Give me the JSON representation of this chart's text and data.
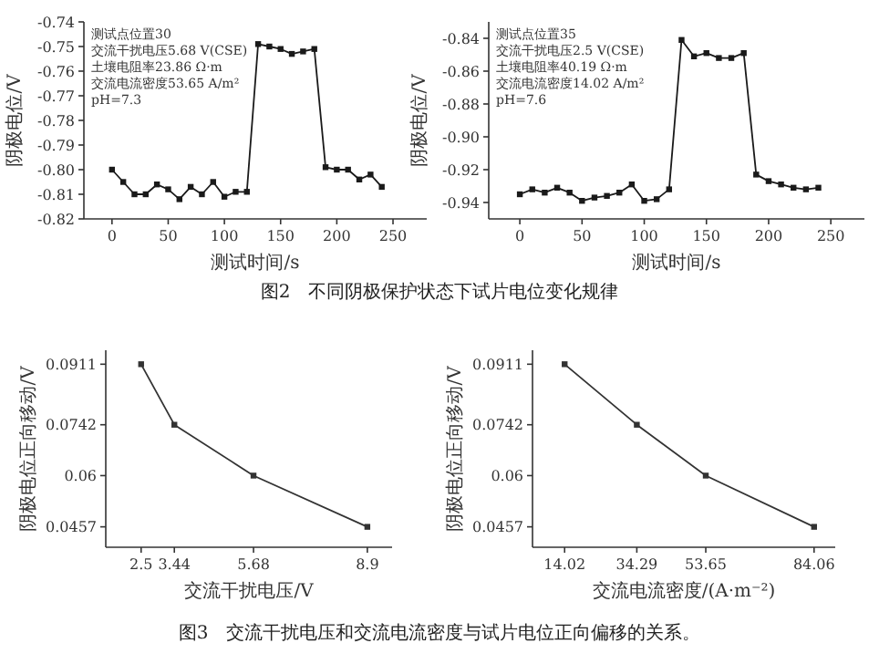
{
  "chart_data": [
    {
      "type": "line",
      "title": "图2　不同阴极保护状态下试片电位变化规律",
      "xlabel": "测试时间/s",
      "ylabel": "阴极电位/V",
      "marker": "square",
      "color": "#1a1a1a",
      "annotations": [
        "测试点位置30",
        "交流干扰电压5.68 V(CSE)",
        "土壤电阻率23.86 Ω·m",
        "交流电流密度53.65 A/m²",
        "pH=7.3"
      ],
      "x": [
        0,
        10,
        20,
        30,
        40,
        50,
        60,
        70,
        80,
        90,
        100,
        110,
        120,
        130,
        140,
        150,
        160,
        170,
        180,
        190,
        200,
        210,
        220,
        230,
        240
      ],
      "values": [
        -0.8,
        -0.805,
        -0.81,
        -0.81,
        -0.806,
        -0.808,
        -0.812,
        -0.807,
        -0.81,
        -0.805,
        -0.811,
        -0.809,
        -0.809,
        -0.749,
        -0.75,
        -0.751,
        -0.753,
        -0.752,
        -0.751,
        -0.799,
        -0.8,
        -0.8,
        -0.804,
        -0.802,
        -0.807
      ],
      "xlim": [
        -25,
        280
      ],
      "ylim": [
        -0.82,
        -0.74
      ],
      "xticks": [
        0,
        50,
        100,
        150,
        200,
        250
      ],
      "yticks": [
        -0.82,
        -0.81,
        {
          "value": -0.8,
          "label": "-0.80"
        },
        -0.79,
        -0.78,
        -0.77,
        -0.76,
        -0.75,
        -0.74
      ]
    },
    {
      "type": "line",
      "xlabel": "测试时间/s",
      "ylabel": "阴极电位/V",
      "marker": "square",
      "color": "#1a1a1a",
      "annotations": [
        "测试点位置35",
        "交流干扰电压2.5 V(CSE)",
        "土壤电阻率40.19 Ω·m",
        "交流电流密度14.02 A/m²",
        "pH=7.6"
      ],
      "x": [
        0,
        10,
        20,
        30,
        40,
        50,
        60,
        70,
        80,
        90,
        100,
        110,
        120,
        130,
        140,
        150,
        160,
        170,
        180,
        190,
        200,
        210,
        220,
        230,
        240
      ],
      "values": [
        -0.935,
        -0.932,
        -0.934,
        -0.931,
        -0.934,
        -0.939,
        -0.937,
        -0.936,
        -0.934,
        -0.929,
        -0.939,
        -0.938,
        -0.932,
        -0.841,
        -0.851,
        -0.849,
        -0.852,
        -0.852,
        -0.849,
        -0.923,
        -0.927,
        -0.929,
        -0.931,
        -0.932,
        -0.931
      ],
      "xlim": [
        -25,
        277
      ],
      "ylim": [
        -0.95,
        -0.83
      ],
      "xticks": [
        0,
        50,
        100,
        150,
        200,
        250
      ],
      "yticks": [
        -0.94,
        -0.92,
        {
          "value": -0.9,
          "label": "-0.90"
        },
        -0.88,
        -0.86,
        -0.84
      ]
    },
    {
      "type": "line",
      "title": "图3　交流干扰电压和交流电流密度与试片电位正向偏移的关系。",
      "xlabel": "交流干扰电压/V",
      "ylabel": "阴极电位正向移动/V",
      "marker": "square",
      "color": "#333333",
      "x": [
        2.5,
        3.44,
        5.68,
        8.9
      ],
      "values": [
        0.0911,
        0.0742,
        0.06,
        0.0457
      ],
      "xlim": [
        1.5,
        9.6
      ],
      "ylim": [
        0.04,
        0.095
      ],
      "xticks": [
        2.5,
        3.44,
        5.68,
        8.9
      ],
      "yticks": [
        0.0457,
        0.06,
        0.0742,
        0.0911
      ]
    },
    {
      "type": "line",
      "xlabel": "交流电流密度/(A·m⁻²)",
      "ylabel": "阴极电位正向移动/V",
      "marker": "square",
      "color": "#333333",
      "x": [
        14.02,
        34.29,
        53.65,
        84.06
      ],
      "values": [
        0.0911,
        0.0742,
        0.06,
        0.0457
      ],
      "xlim": [
        5,
        90
      ],
      "ylim": [
        0.04,
        0.095
      ],
      "xticks": [
        14.02,
        34.29,
        53.65,
        84.06
      ],
      "yticks": [
        0.0457,
        0.06,
        0.0742,
        0.0911
      ]
    }
  ]
}
